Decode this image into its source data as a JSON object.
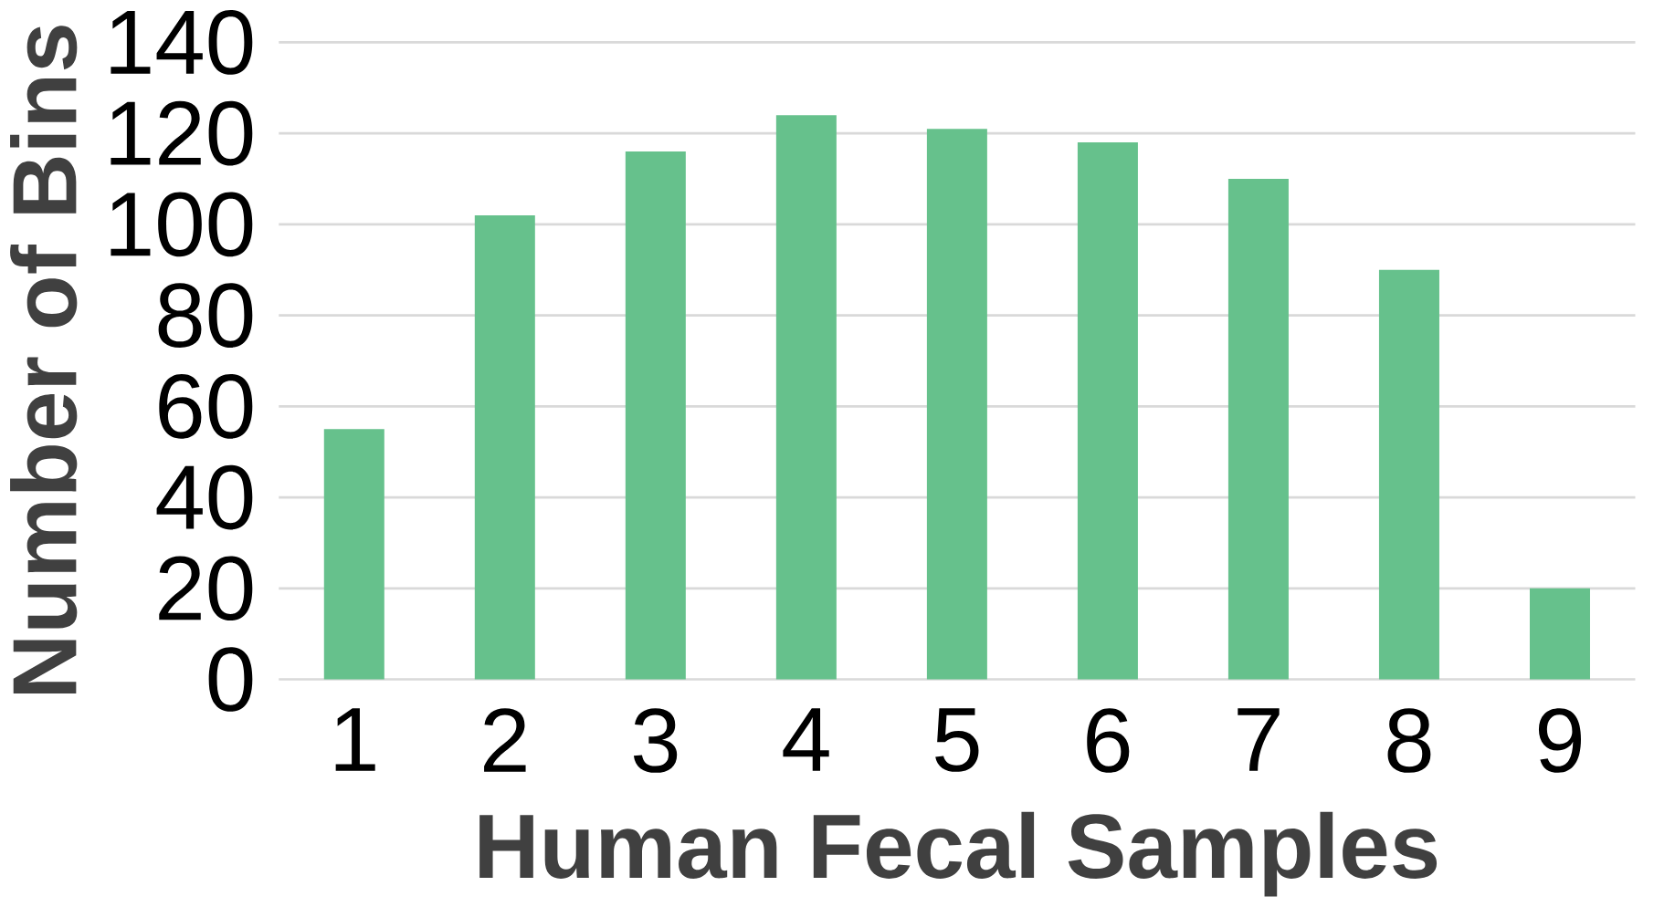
{
  "chart_data": {
    "type": "bar",
    "xlabel": "Human Fecal Samples",
    "ylabel": "Number of Bins",
    "categories": [
      "1",
      "2",
      "3",
      "4",
      "5",
      "6",
      "7",
      "8",
      "9"
    ],
    "values": [
      55,
      102,
      116,
      124,
      121,
      118,
      110,
      90,
      20
    ],
    "color": "#66c18c",
    "ylim": [
      0,
      140
    ],
    "yticks": [
      0,
      20,
      40,
      60,
      80,
      100,
      120,
      140
    ],
    "grid": "y"
  }
}
